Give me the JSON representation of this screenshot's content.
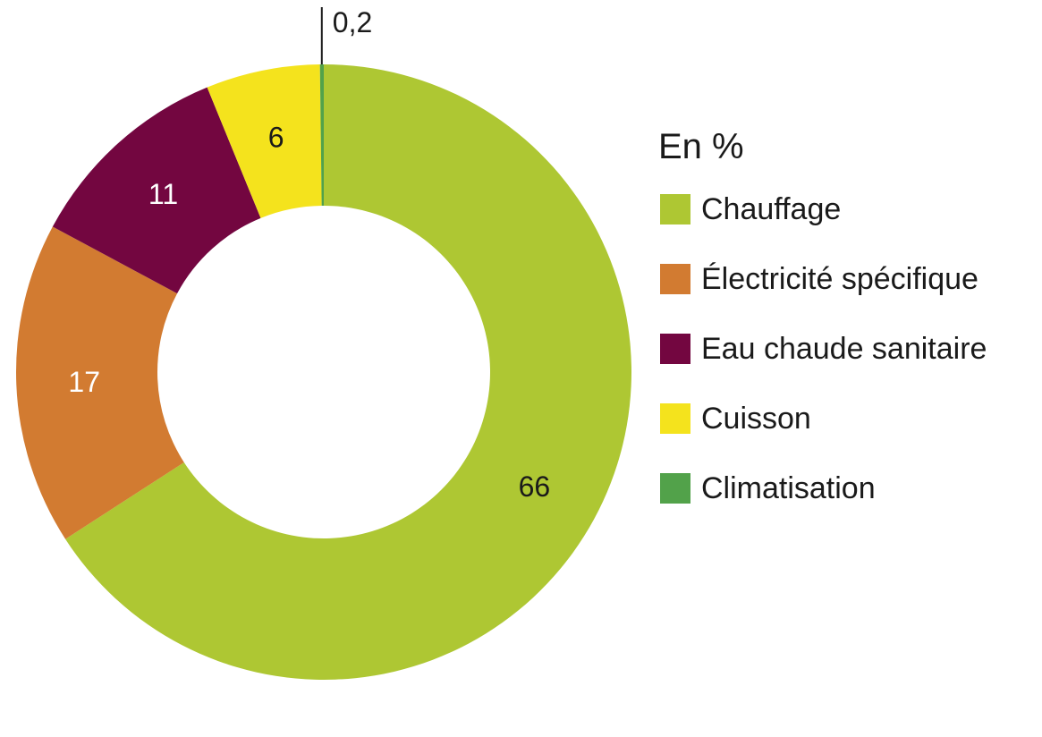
{
  "chart_data": {
    "type": "pie",
    "donut": true,
    "legend_title": "En %",
    "legend_position": "right",
    "slices": [
      {
        "name": "Chauffage",
        "value": 66,
        "label": "66",
        "color": "#aec733",
        "label_color": "#1a1a1a"
      },
      {
        "name": "Électricité spécifique",
        "value": 17,
        "label": "17",
        "color": "#d27b31",
        "label_color": "#ffffff"
      },
      {
        "name": "Eau chaude sanitaire",
        "value": 11,
        "label": "11",
        "color": "#730640",
        "label_color": "#ffffff"
      },
      {
        "name": "Cuisson",
        "value": 6,
        "label": "6",
        "color": "#f4e31d",
        "label_color": "#1a1a1a"
      },
      {
        "name": "Climatisation",
        "value": 0.2,
        "label": "0,2",
        "color": "#52a24a",
        "label_color": "#1a1a1a"
      }
    ]
  }
}
